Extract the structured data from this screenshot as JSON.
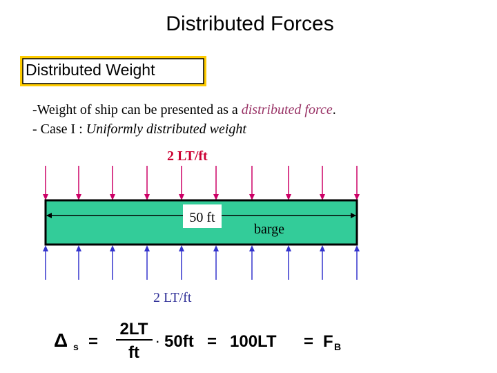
{
  "header": {
    "title": "Distributed Forces",
    "box_label": "Distributed Weight"
  },
  "lines": [
    {
      "prefix": "-Weight of ship can be presented as a ",
      "emphasis": "distributed force",
      "suffix": "."
    },
    {
      "prefix": "- Case I : ",
      "emphasis": "Uniformly distributed weight"
    }
  ],
  "diagram": {
    "top_load": "2 LT/ft",
    "length": "50 ft",
    "body": "barge",
    "bottom_load": "2 LT/ft"
  },
  "equation": {
    "delta": "Δ",
    "delta_sub": "s",
    "eq1": "=",
    "numerator": "2LT",
    "denominator": "ft",
    "dot": "·",
    "length": "50ft",
    "eq2": "=",
    "result": "100LT",
    "eq3": "=",
    "force": "F",
    "force_sub": "B"
  }
}
